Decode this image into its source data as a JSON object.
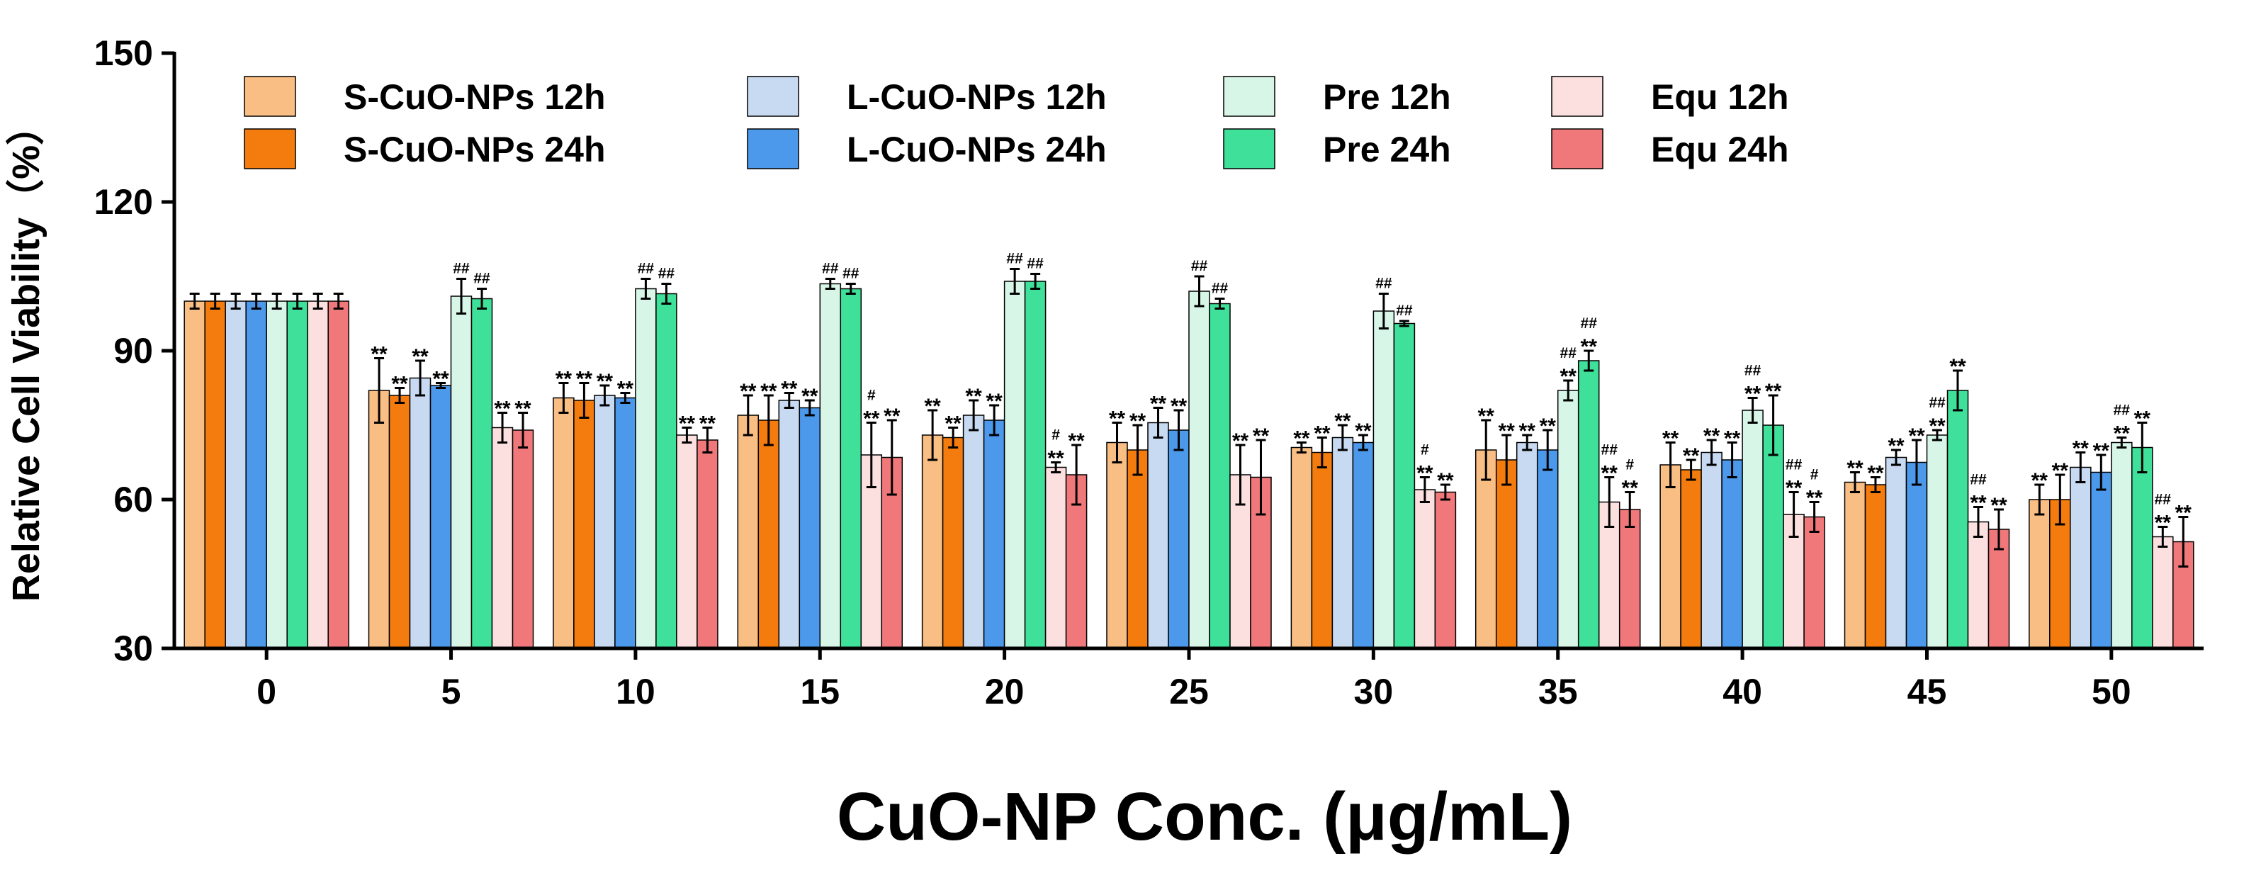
{
  "chart_data": {
    "type": "bar",
    "title": "",
    "xlabel": "CuO-NP Conc. (μg/mL)",
    "ylabel": "Relative Cell Viability（%）",
    "ylim": [
      30,
      150
    ],
    "yticks": [
      "30",
      "60",
      "90",
      "120",
      "150"
    ],
    "categories": [
      "0",
      "5",
      "10",
      "15",
      "20",
      "25",
      "30",
      "35",
      "40",
      "45",
      "50"
    ],
    "legend_position": "top",
    "series": [
      {
        "name": "S-CuO-NPs 12h",
        "color": "#F9BE84",
        "values": [
          100,
          82,
          80.5,
          77,
          73,
          71.5,
          70.5,
          70,
          67,
          63.5,
          60
        ],
        "errors": [
          1.5,
          6.5,
          3,
          4,
          5,
          4,
          1,
          6,
          4.5,
          2,
          3
        ],
        "marks": [
          "",
          "**",
          "**",
          "**",
          "**",
          "**",
          "**",
          "**",
          "**",
          "**",
          "**"
        ]
      },
      {
        "name": "S-CuO-NPs 24h",
        "color": "#F47C0E",
        "values": [
          100,
          81,
          80,
          76,
          72.5,
          70,
          69.5,
          68,
          66,
          63,
          60
        ],
        "errors": [
          1.5,
          1.5,
          3.5,
          5,
          2,
          5,
          3,
          5,
          2,
          1.5,
          5
        ],
        "marks": [
          "",
          "**",
          "**",
          "**",
          "**",
          "**",
          "**",
          "**",
          "**",
          "**",
          "**"
        ]
      },
      {
        "name": "L-CuO-NPs 12h",
        "color": "#C7DAF2",
        "values": [
          100,
          84.5,
          81,
          80,
          77,
          75.5,
          72.5,
          71.5,
          69.5,
          68.5,
          66.5
        ],
        "errors": [
          1.5,
          3.5,
          2,
          1.5,
          3,
          3,
          2.5,
          1.5,
          2.5,
          1.5,
          3
        ],
        "marks": [
          "",
          "**",
          "**",
          "**",
          "**",
          "**",
          "**",
          "**",
          "**",
          "**",
          "**"
        ]
      },
      {
        "name": "L-CuO-NPs 24h",
        "color": "#4C98EA",
        "values": [
          100,
          83,
          80.5,
          78.5,
          76,
          74,
          71.5,
          70,
          68,
          67.5,
          65.5
        ],
        "errors": [
          1.5,
          0.5,
          1,
          1.5,
          3,
          4,
          1.5,
          4,
          3.5,
          4.5,
          3.5
        ],
        "marks": [
          "",
          "**",
          "**",
          "**",
          "**",
          "**",
          "**",
          "**",
          "**",
          "**",
          "**"
        ]
      },
      {
        "name": "Pre 12h",
        "color": "#D8F6E8",
        "values": [
          100,
          101,
          102.5,
          103.5,
          104,
          102,
          98,
          82,
          78,
          73,
          71.5
        ],
        "errors": [
          1.5,
          3.5,
          2,
          1,
          2.5,
          3,
          3.5,
          2,
          2.5,
          1,
          1
        ],
        "marks": [
          "",
          "##",
          "##",
          "##",
          "##",
          "##",
          "##",
          "##\n**",
          "##\n**",
          "##\n**",
          "##\n**"
        ]
      },
      {
        "name": "Pre 24h",
        "color": "#3FE09A",
        "values": [
          100,
          100.5,
          101.5,
          102.5,
          104,
          99.5,
          95.5,
          88,
          75,
          82,
          70.5
        ],
        "errors": [
          1.5,
          2,
          2,
          1,
          1.5,
          1,
          0.5,
          2,
          6,
          4,
          5
        ],
        "marks": [
          "",
          "##",
          "##",
          "##",
          "##",
          "##",
          "##",
          "##\n**",
          "**",
          "**",
          "**"
        ]
      },
      {
        "name": "Equ 12h",
        "color": "#FCE0E0",
        "values": [
          100,
          74.5,
          73,
          69,
          66.5,
          65,
          62,
          59.5,
          57,
          55.5,
          52.5
        ],
        "errors": [
          1.5,
          3,
          1.5,
          6.5,
          1,
          6,
          2.5,
          5,
          4.5,
          3,
          2
        ],
        "marks": [
          "",
          "**",
          "**",
          "#\n**",
          "#\n**",
          "**",
          "#\n**",
          "##\n**",
          "##\n**",
          "##\n**",
          "##\n**"
        ]
      },
      {
        "name": "Equ 24h",
        "color": "#F0787A",
        "values": [
          100,
          74,
          72,
          68.5,
          65,
          64.5,
          61.5,
          58,
          56.5,
          54,
          51.5
        ],
        "errors": [
          1.5,
          3.5,
          2.5,
          7.5,
          6,
          7.5,
          1.5,
          3.5,
          3,
          4,
          5
        ],
        "marks": [
          "",
          "**",
          "**",
          "**",
          "**",
          "**",
          "**",
          "#\n**",
          "#\n**",
          "**",
          "**"
        ]
      }
    ]
  }
}
